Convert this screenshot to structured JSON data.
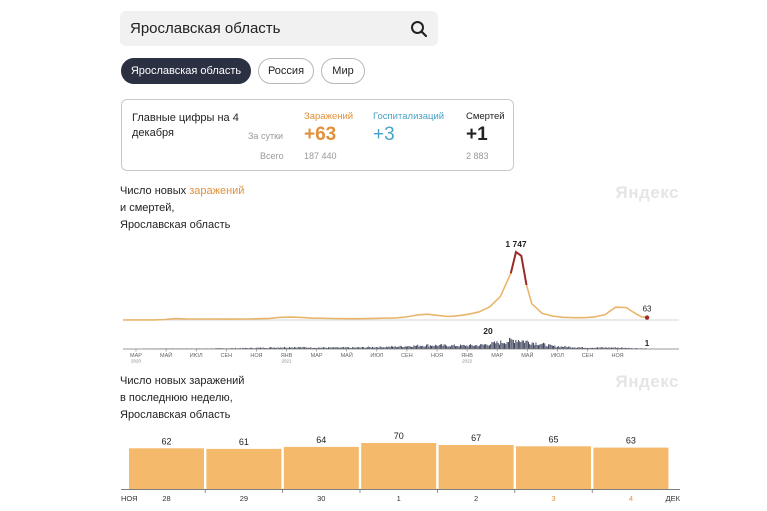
{
  "search": {
    "query": "Ярославская область"
  },
  "region_tabs": [
    {
      "label": "Ярославская область",
      "active": true
    },
    {
      "label": "Россия",
      "active": false
    },
    {
      "label": "Мир",
      "active": false
    }
  ],
  "summary": {
    "header": "Главные цифры на 4 декабря",
    "row_daily": "За сутки",
    "row_total": "Всего",
    "columns": [
      {
        "label": "Заражений",
        "daily": "+63",
        "total": "187 440",
        "color": "#e0913a"
      },
      {
        "label": "Госпитализаций",
        "daily": "+3",
        "total": "",
        "color": "#4aa3c7"
      },
      {
        "label": "Смертей",
        "daily": "+1",
        "total": "2 883",
        "color": "#222222"
      }
    ]
  },
  "brand": "Яндекс",
  "chart1_title": {
    "part1": "Число новых ",
    "highlight": "заражений",
    "line2": "и смертей,",
    "line3": "Ярославская область"
  },
  "chart2_title": {
    "line1": "Число новых заражений",
    "line2": "в последнюю неделю,",
    "line3": "Ярославская область"
  },
  "chart_data": [
    {
      "type": "line",
      "series": [
        {
          "name": "заражений",
          "color": "#e8b56a",
          "peak_color": "#9b2a2a",
          "points": [
            [
              0,
              0
            ],
            [
              3,
              2
            ],
            [
              4,
              12
            ],
            [
              5,
              35
            ],
            [
              6,
              28
            ],
            [
              8,
              26
            ],
            [
              10,
              24
            ],
            [
              12,
              26
            ],
            [
              14,
              40
            ],
            [
              15,
              70
            ],
            [
              16,
              75
            ],
            [
              17,
              68
            ],
            [
              18,
              50
            ],
            [
              20,
              38
            ],
            [
              22,
              34
            ],
            [
              24,
              40
            ],
            [
              26,
              55
            ],
            [
              27,
              78
            ],
            [
              28,
              125
            ],
            [
              29,
              150
            ],
            [
              30,
              120
            ],
            [
              31,
              90
            ],
            [
              32,
              110
            ],
            [
              33,
              150
            ],
            [
              34,
              210
            ],
            [
              35,
              340
            ],
            [
              36,
              600
            ],
            [
              37,
              1200
            ],
            [
              37.5,
              1747
            ],
            [
              38,
              1650
            ],
            [
              38.5,
              900
            ],
            [
              39,
              420
            ],
            [
              40,
              170
            ],
            [
              41,
              100
            ],
            [
              42,
              70
            ],
            [
              43,
              60
            ],
            [
              44,
              60
            ],
            [
              45,
              80
            ],
            [
              46,
              140
            ],
            [
              47,
              330
            ],
            [
              48,
              320
            ],
            [
              49,
              150
            ],
            [
              49.5,
              80
            ],
            [
              50,
              63
            ]
          ],
          "last_label": "63",
          "peak_label": "1 747"
        },
        {
          "name": "смертей",
          "color": "#2f3550",
          "peak_label": "20",
          "last_label": "1",
          "envelope": [
            [
              0,
              0
            ],
            [
              4,
              1
            ],
            [
              8,
              1
            ],
            [
              12,
              2
            ],
            [
              16,
              4
            ],
            [
              18,
              3
            ],
            [
              22,
              3
            ],
            [
              26,
              5
            ],
            [
              29,
              8
            ],
            [
              32,
              7
            ],
            [
              34,
              8
            ],
            [
              36,
              14
            ],
            [
              37.5,
              20
            ],
            [
              39,
              14
            ],
            [
              41,
              6
            ],
            [
              44,
              3
            ],
            [
              47,
              3
            ],
            [
              50,
              1
            ]
          ]
        }
      ],
      "x_ticks": [
        {
          "label": "МАР",
          "year": "2020"
        },
        {
          "label": "МАЙ",
          "year": ""
        },
        {
          "label": "ИЮЛ",
          "year": ""
        },
        {
          "label": "СЕН",
          "year": ""
        },
        {
          "label": "НОЯ",
          "year": ""
        },
        {
          "label": "ЯНВ",
          "year": "2021"
        },
        {
          "label": "МАР",
          "year": ""
        },
        {
          "label": "МАЙ",
          "year": ""
        },
        {
          "label": "ИЮЛ",
          "year": ""
        },
        {
          "label": "СЕН",
          "year": ""
        },
        {
          "label": "НОЯ",
          "year": ""
        },
        {
          "label": "ЯНВ",
          "year": "2022"
        },
        {
          "label": "МАР",
          "year": ""
        },
        {
          "label": "МАЙ",
          "year": ""
        },
        {
          "label": "ИЮЛ",
          "year": ""
        },
        {
          "label": "СЕН",
          "year": ""
        },
        {
          "label": "НОЯ",
          "year": ""
        }
      ],
      "ylim": [
        0,
        1900
      ]
    },
    {
      "type": "bar",
      "bar_color": "#f4b96a",
      "categories": [
        "28",
        "29",
        "30",
        "1",
        "2",
        "3",
        "4"
      ],
      "category_colors": [
        "#333333",
        "#333333",
        "#333333",
        "#333333",
        "#333333",
        "#e0913a",
        "#e0913a"
      ],
      "values": [
        62,
        61,
        64,
        70,
        67,
        65,
        63
      ],
      "x_edge_left": "НОЯ",
      "x_edge_right": "ДЕК",
      "ylim": [
        0,
        70
      ]
    }
  ]
}
